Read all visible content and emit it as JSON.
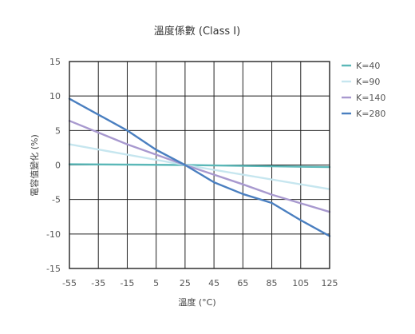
{
  "chart_data": {
    "type": "line",
    "title": "溫度係數 (Class I)",
    "xlabel": "溫度 (°C)",
    "ylabel": "電容值變化 (%)",
    "xlim": [
      -55,
      125
    ],
    "ylim": [
      -15,
      15
    ],
    "xticks": [
      -55,
      -35,
      -15,
      5,
      25,
      45,
      65,
      85,
      105,
      125
    ],
    "yticks": [
      -15,
      -10,
      -5,
      0,
      5,
      10,
      15
    ],
    "grid": true,
    "legend_position": "top-right",
    "series": [
      {
        "name": "K=40",
        "color": "#5bb8b8",
        "points": [
          [
            -55,
            0.1
          ],
          [
            25,
            0
          ],
          [
            125,
            -0.3
          ]
        ]
      },
      {
        "name": "K=90",
        "color": "#c6e6ef",
        "points": [
          [
            -55,
            3.0
          ],
          [
            25,
            0
          ],
          [
            125,
            -3.5
          ]
        ]
      },
      {
        "name": "K=140",
        "color": "#a899cf",
        "points": [
          [
            -55,
            6.4
          ],
          [
            -15,
            3.0
          ],
          [
            25,
            0
          ],
          [
            65,
            -2.8
          ],
          [
            85,
            -4.3
          ],
          [
            125,
            -6.8
          ]
        ]
      },
      {
        "name": "K=280",
        "color": "#4a7fc0",
        "points": [
          [
            -55,
            9.6
          ],
          [
            -15,
            5.0
          ],
          [
            5,
            2.2
          ],
          [
            25,
            0
          ],
          [
            45,
            -2.5
          ],
          [
            65,
            -4.2
          ],
          [
            85,
            -5.5
          ],
          [
            105,
            -8.0
          ],
          [
            125,
            -10.3
          ]
        ]
      }
    ]
  }
}
